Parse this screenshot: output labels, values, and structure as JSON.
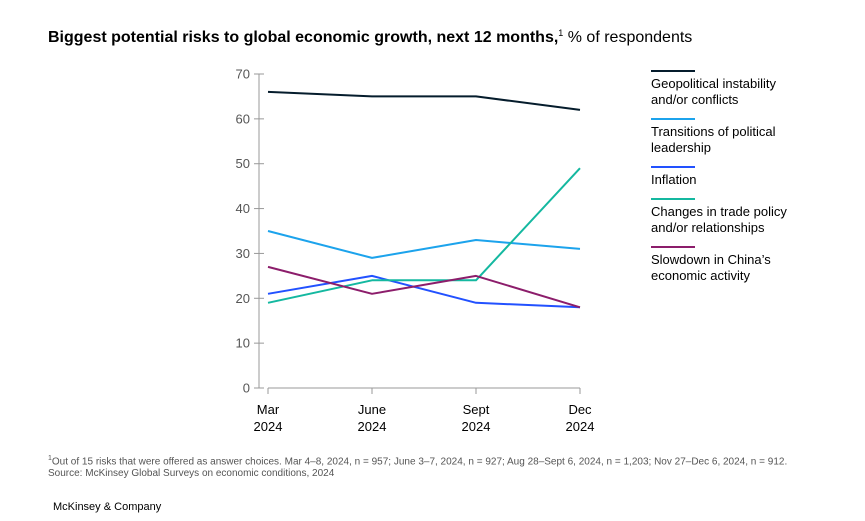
{
  "title": {
    "main": "Biggest potential risks to global economic growth, next 12 months,",
    "sup": "1",
    "unit": " % of respondents"
  },
  "chart_data": {
    "type": "line",
    "categories": [
      {
        "line1": "Mar",
        "line2": "2024"
      },
      {
        "line1": "June",
        "line2": "2024"
      },
      {
        "line1": "Sept",
        "line2": "2024"
      },
      {
        "line1": "Dec",
        "line2": "2024"
      }
    ],
    "ylim": [
      0,
      70
    ],
    "yticks": [
      0,
      10,
      20,
      30,
      40,
      50,
      60,
      70
    ],
    "grid": false,
    "legend_position": "right",
    "series": [
      {
        "name": "Geopolitical instability and/or conflicts",
        "color": "#051c2c",
        "values": [
          66,
          65,
          65,
          62
        ]
      },
      {
        "name": "Transitions of political leadership",
        "color": "#1ca3ec",
        "values": [
          35,
          29,
          33,
          31
        ]
      },
      {
        "name": "Inflation",
        "color": "#2251ff",
        "values": [
          21,
          25,
          19,
          18
        ]
      },
      {
        "name": "Changes in trade policy and/or relationships",
        "color": "#14b8a0",
        "values": [
          19,
          24,
          24,
          49
        ]
      },
      {
        "name": "Slowdown in China’s economic activity",
        "color": "#8c1d6b",
        "values": [
          27,
          21,
          25,
          18
        ]
      }
    ]
  },
  "footnote": {
    "sup": "1",
    "text": "Out of 15 risks that were offered as answer choices. Mar 4–8, 2024, n = 957; June 3–7, 2024, n = 927; Aug 28–Sept 6, 2024, n = 1,203; Nov 27–Dec 6, 2024, n = 912.",
    "source": "Source: McKinsey Global Surveys on economic conditions, 2024"
  },
  "brand": "McKinsey & Company"
}
